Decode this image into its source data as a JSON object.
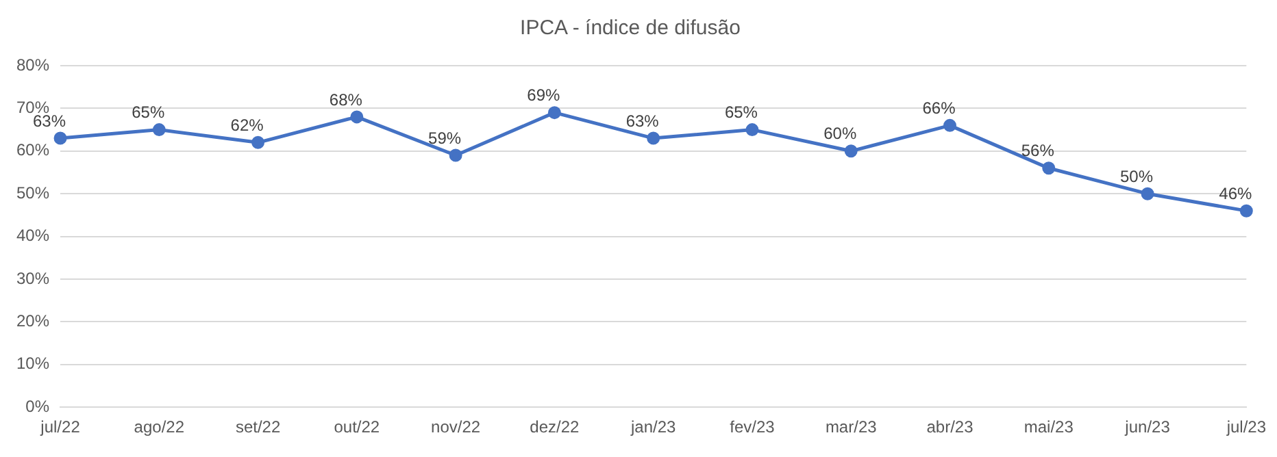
{
  "chart_data": {
    "type": "line",
    "title": "IPCA - índice de difusão",
    "categories": [
      "jul/22",
      "ago/22",
      "set/22",
      "out/22",
      "nov/22",
      "dez/22",
      "jan/23",
      "fev/23",
      "mar/23",
      "abr/23",
      "mai/23",
      "jun/23",
      "jul/23"
    ],
    "series": [
      {
        "color": "#4472c4",
        "values": [
          63,
          65,
          62,
          68,
          59,
          69,
          63,
          65,
          60,
          66,
          56,
          50,
          46
        ]
      }
    ],
    "ylim": [
      0,
      80
    ],
    "yticks": [
      {
        "value": 0,
        "label": "0%"
      },
      {
        "value": 10,
        "label": "10%"
      },
      {
        "value": 20,
        "label": "20%"
      },
      {
        "value": 30,
        "label": "30%"
      },
      {
        "value": 40,
        "label": "40%"
      },
      {
        "value": 50,
        "label": "50%"
      },
      {
        "value": 60,
        "label": "60%"
      },
      {
        "value": 70,
        "label": "70%"
      },
      {
        "value": 80,
        "label": "80%"
      }
    ],
    "value_labels": [
      "63%",
      "65%",
      "62%",
      "68%",
      "59%",
      "69%",
      "63%",
      "65%",
      "60%",
      "66%",
      "56%",
      "50%",
      "46%"
    ],
    "grid": "y",
    "legend": false,
    "marker": "circle",
    "line_style": "solid"
  }
}
